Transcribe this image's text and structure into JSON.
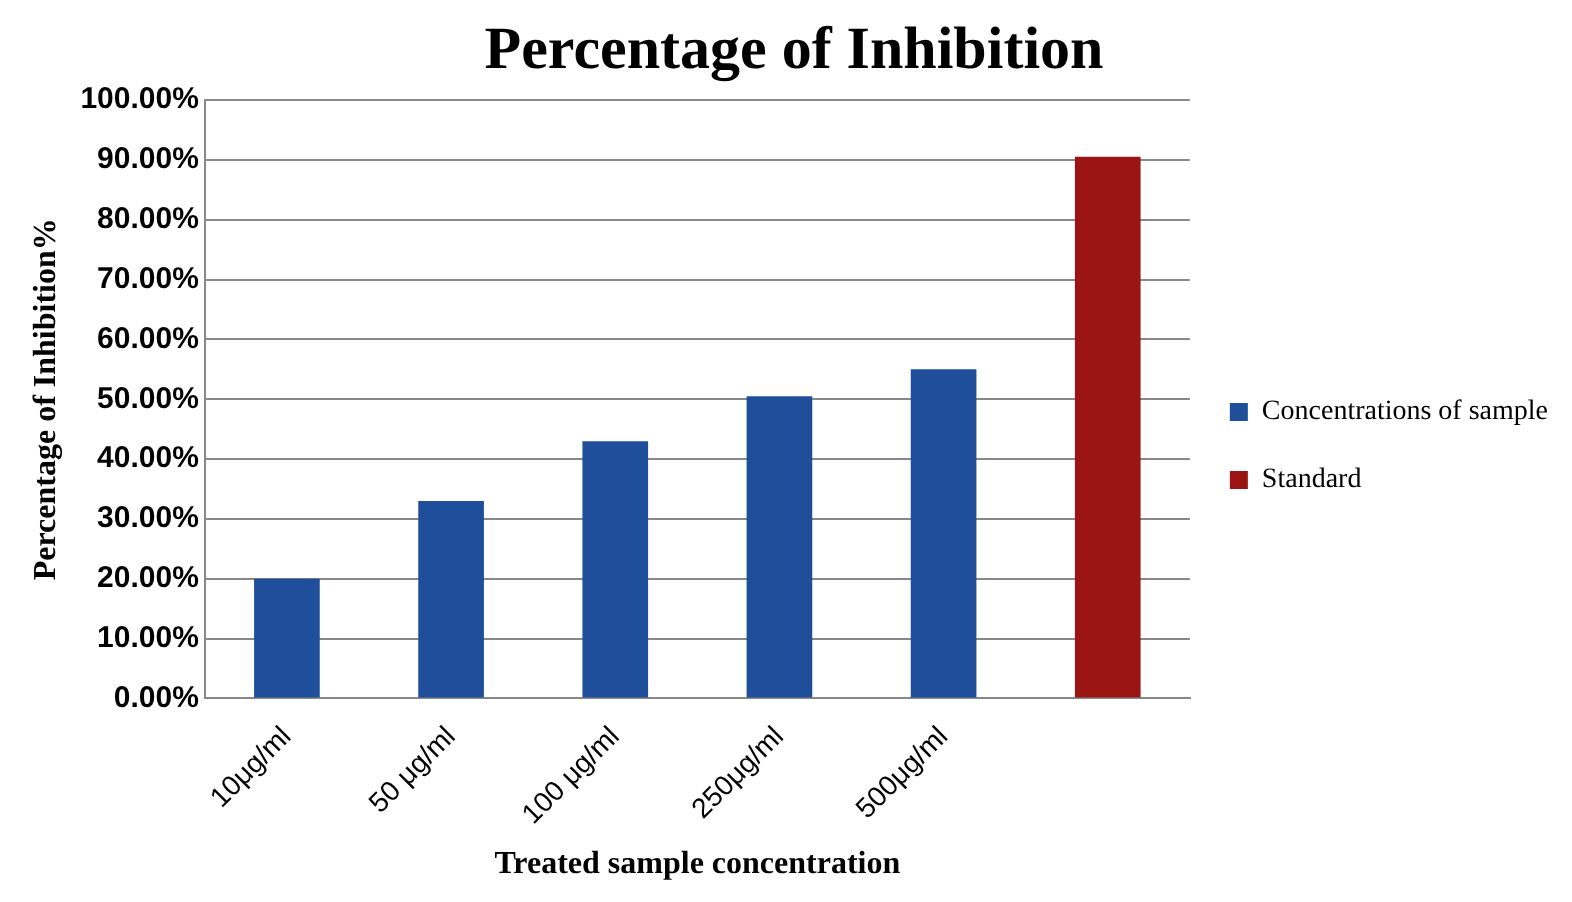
{
  "chart_data": {
    "type": "bar",
    "title": "Percentage of Inhibition",
    "xlabel": "Treated sample concentration",
    "ylabel": "Percentage of Inhibition%",
    "categories": [
      "10μg/ml",
      "50 μg/ml",
      "100 μg/ml",
      "250μg/ml",
      "500μg/ml",
      null
    ],
    "series": [
      {
        "name": "Concentrations of sample",
        "color": "#1f4f9a",
        "values": [
          20,
          33,
          43,
          50.5,
          55,
          null
        ]
      },
      {
        "name": "Standard",
        "color": "#9b1414",
        "values": [
          null,
          null,
          null,
          null,
          null,
          90.5
        ]
      }
    ],
    "ylim": [
      0,
      100
    ],
    "yticks": [
      {
        "value": 0,
        "label": "0.00%"
      },
      {
        "value": 10,
        "label": "10.00%"
      },
      {
        "value": 20,
        "label": "20.00%"
      },
      {
        "value": 30,
        "label": "30.00%"
      },
      {
        "value": 40,
        "label": "40.00%"
      },
      {
        "value": 50,
        "label": "50.00%"
      },
      {
        "value": 60,
        "label": "60.00%"
      },
      {
        "value": 70,
        "label": "70.00%"
      },
      {
        "value": 80,
        "label": "80.00%"
      },
      {
        "value": 90,
        "label": "90.00%"
      },
      {
        "value": 100,
        "label": "100.00%"
      }
    ],
    "grid": "y",
    "legend": "right"
  }
}
